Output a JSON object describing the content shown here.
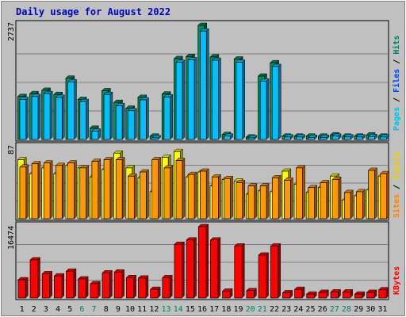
{
  "chart_data": {
    "type": "bar",
    "title": "Daily usage for August 2022",
    "categories": [
      "1",
      "2",
      "3",
      "4",
      "5",
      "6",
      "7",
      "8",
      "9",
      "10",
      "11",
      "12",
      "13",
      "14",
      "15",
      "16",
      "17",
      "18",
      "19",
      "20",
      "21",
      "22",
      "23",
      "24",
      "25",
      "26",
      "27",
      "28",
      "29",
      "30",
      "31"
    ],
    "weekend_days": [
      "6",
      "7",
      "13",
      "14",
      "20",
      "21",
      "27",
      "28"
    ],
    "panels": [
      {
        "id": "top",
        "max_label": "2737",
        "ylim": [
          0,
          2737
        ],
        "axis_label_parts": [
          {
            "text": "Pages",
            "color": "#00c0e0"
          },
          {
            "text": " / ",
            "color": "#000000"
          },
          {
            "text": "Files",
            "color": "#0040ff"
          },
          {
            "text": " / ",
            "color": "#000000"
          },
          {
            "text": "Hits",
            "color": "#008060"
          }
        ],
        "series": [
          {
            "name": "Hits",
            "color": "#009060",
            "values": [
              1030,
              1100,
              1180,
              1080,
              1470,
              960,
              270,
              1170,
              890,
              750,
              1010,
              80,
              1090,
              1940,
              1990,
              2737,
              1980,
              120,
              1930,
              60,
              1520,
              1840,
              80,
              80,
              80,
              80,
              110,
              80,
              80,
              110,
              80
            ]
          },
          {
            "name": "Files",
            "color": "#00c0ff",
            "values": [
              960,
              1030,
              1100,
              1010,
              1380,
              910,
              200,
              1080,
              810,
              690,
              950,
              40,
              1020,
              1850,
              1910,
              2600,
              1900,
              80,
              1850,
              40,
              1400,
              1750,
              60,
              60,
              50,
              50,
              80,
              60,
              60,
              70,
              60
            ]
          }
        ]
      },
      {
        "id": "middle",
        "max_label": "87",
        "ylim": [
          0,
          87
        ],
        "axis_label_parts": [
          {
            "text": "Sites",
            "color": "#ff8000"
          },
          {
            "text": " / ",
            "color": "#000000"
          },
          {
            "text": "Visits",
            "color": "#e8d000"
          }
        ],
        "series": [
          {
            "name": "Visits",
            "color": "#ffff00",
            "values": [
              72,
              55,
              62,
              55,
              65,
              62,
              51,
              60,
              80,
              62,
              50,
              33,
              75,
              82,
              51,
              57,
              40,
              48,
              46,
              30,
              34,
              33,
              58,
              42,
              32,
              38,
              52,
              23,
              28,
              35,
              52
            ]
          },
          {
            "name": "Sites",
            "color": "#ff9900",
            "values": [
              63,
              67,
              68,
              65,
              68,
              62,
              70,
              72,
              72,
              52,
              57,
              72,
              62,
              71,
              54,
              58,
              51,
              49,
              44,
              40,
              40,
              50,
              47,
              62,
              38,
              44,
              48,
              32,
              33,
              59,
              55
            ]
          }
        ]
      },
      {
        "id": "bottom",
        "max_label": "16474",
        "ylim": [
          0,
          16474
        ],
        "axis_label_parts": [
          {
            "text": "KBytes",
            "color": "#ff0000"
          }
        ],
        "series": [
          {
            "name": "KBytes",
            "color": "#ff0000",
            "values": [
              4200,
              8800,
              5600,
              5100,
              6200,
              4400,
              3300,
              5800,
              6000,
              4700,
              4600,
              2000,
              4700,
              12400,
              13400,
              16474,
              13400,
              1600,
              12000,
              1700,
              9900,
              12000,
              1200,
              2000,
              900,
              1300,
              1400,
              1400,
              900,
              1300,
              1900
            ]
          }
        ]
      }
    ]
  }
}
